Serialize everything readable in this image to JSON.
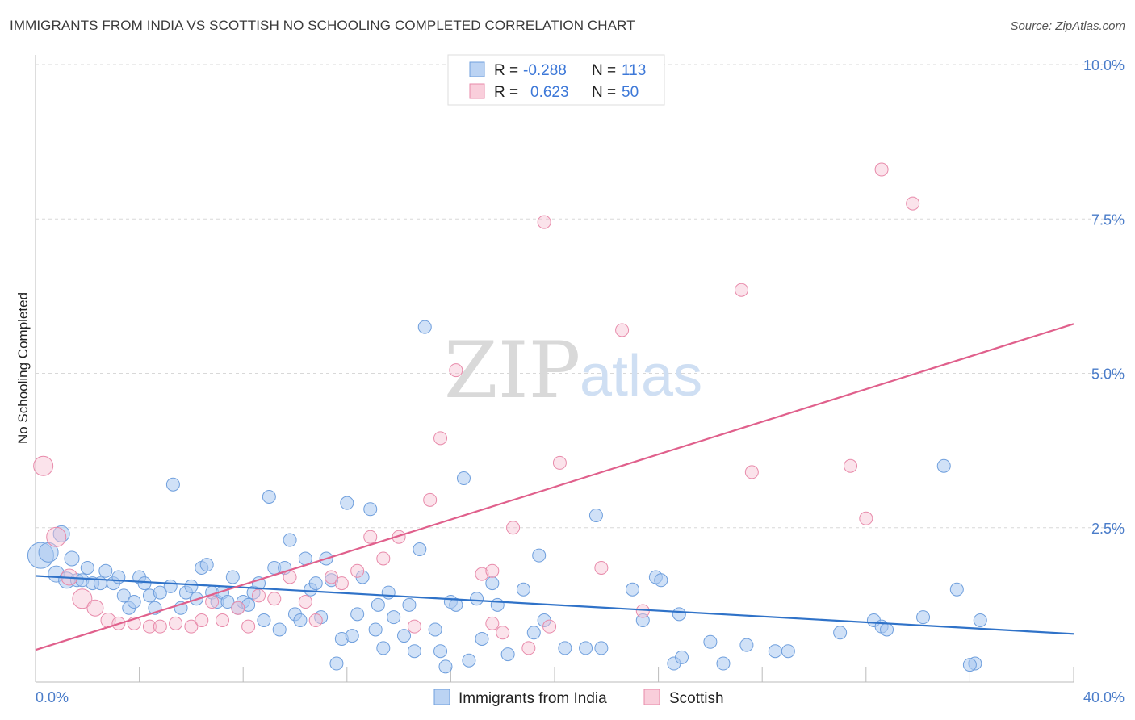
{
  "header": {
    "title": "IMMIGRANTS FROM INDIA VS SCOTTISH NO SCHOOLING COMPLETED CORRELATION CHART",
    "source": "Source: ZipAtlas.com"
  },
  "watermark": {
    "zip": "ZIP",
    "atlas": "atlas"
  },
  "legend_box": {
    "rows": [
      {
        "r_label": "R =",
        "r_value": "-0.288",
        "n_label": "N =",
        "n_value": "113"
      },
      {
        "r_label": "R =",
        "r_value": "0.623",
        "n_label": "N =",
        "n_value": "50"
      }
    ]
  },
  "bottom_legend": {
    "india": "Immigrants from India",
    "scottish": "Scottish"
  },
  "colors": {
    "india_fill": "#aac8f0",
    "india_stroke": "#6f9fdd",
    "india_line": "#2f72c8",
    "scottish_fill": "#f7c2d2",
    "scottish_stroke": "#e88aaa",
    "scottish_line": "#e0608c",
    "tick_text": "#4a7cc9"
  },
  "chart_data": {
    "type": "scatter",
    "title": "IMMIGRANTS FROM INDIA VS SCOTTISH NO SCHOOLING COMPLETED CORRELATION CHART",
    "xlabel": "",
    "ylabel": "No Schooling Completed",
    "xlim": [
      0,
      40
    ],
    "ylim": [
      0,
      10
    ],
    "x_tick_labels": [
      "0.0%",
      "40.0%"
    ],
    "y_tick_labels": [
      "2.5%",
      "5.0%",
      "7.5%",
      "10.0%"
    ],
    "y_ticks": [
      2.5,
      5.0,
      7.5,
      10.0
    ],
    "grid": true,
    "series": [
      {
        "name": "Immigrants from India",
        "r": -0.288,
        "n": 113,
        "trend": {
          "x": [
            0,
            40
          ],
          "y": [
            1.72,
            0.78
          ]
        },
        "points": [
          [
            0.2,
            2.05,
            16
          ],
          [
            0.5,
            2.1,
            12
          ],
          [
            0.8,
            1.75,
            10
          ],
          [
            1.0,
            2.4,
            10
          ],
          [
            1.2,
            1.65,
            10
          ],
          [
            1.4,
            2.0,
            9
          ],
          [
            1.6,
            1.65,
            8
          ],
          [
            1.8,
            1.65,
            8
          ],
          [
            2.0,
            1.85,
            8
          ],
          [
            2.2,
            1.6,
            8
          ],
          [
            2.5,
            1.6,
            8
          ],
          [
            2.7,
            1.8,
            8
          ],
          [
            3.0,
            1.6,
            8
          ],
          [
            3.2,
            1.7,
            8
          ],
          [
            3.4,
            1.4,
            8
          ],
          [
            3.6,
            1.2,
            8
          ],
          [
            3.8,
            1.3,
            8
          ],
          [
            4.0,
            1.7,
            8
          ],
          [
            4.2,
            1.6,
            8
          ],
          [
            4.4,
            1.4,
            8
          ],
          [
            4.6,
            1.2,
            8
          ],
          [
            4.8,
            1.45,
            8
          ],
          [
            5.2,
            1.55,
            8
          ],
          [
            5.3,
            3.2,
            8
          ],
          [
            5.6,
            1.2,
            8
          ],
          [
            5.8,
            1.45,
            8
          ],
          [
            6.0,
            1.55,
            8
          ],
          [
            6.2,
            1.35,
            8
          ],
          [
            6.4,
            1.85,
            8
          ],
          [
            6.6,
            1.9,
            8
          ],
          [
            6.8,
            1.45,
            8
          ],
          [
            7.0,
            1.3,
            8
          ],
          [
            7.2,
            1.45,
            8
          ],
          [
            7.4,
            1.3,
            8
          ],
          [
            7.6,
            1.7,
            8
          ],
          [
            7.8,
            1.2,
            8
          ],
          [
            8.0,
            1.3,
            8
          ],
          [
            8.2,
            1.25,
            8
          ],
          [
            8.4,
            1.45,
            8
          ],
          [
            8.6,
            1.6,
            8
          ],
          [
            8.8,
            1.0,
            8
          ],
          [
            9.0,
            3.0,
            8
          ],
          [
            9.2,
            1.85,
            8
          ],
          [
            9.4,
            0.85,
            8
          ],
          [
            9.6,
            1.85,
            8
          ],
          [
            9.8,
            2.3,
            8
          ],
          [
            10.0,
            1.1,
            8
          ],
          [
            10.2,
            1.0,
            8
          ],
          [
            10.4,
            2.0,
            8
          ],
          [
            10.6,
            1.5,
            8
          ],
          [
            10.8,
            1.6,
            8
          ],
          [
            11.0,
            1.05,
            8
          ],
          [
            11.2,
            2.0,
            8
          ],
          [
            11.4,
            1.65,
            8
          ],
          [
            11.6,
            0.3,
            8
          ],
          [
            11.8,
            0.7,
            8
          ],
          [
            12.0,
            2.9,
            8
          ],
          [
            12.2,
            0.75,
            8
          ],
          [
            12.4,
            1.1,
            8
          ],
          [
            12.6,
            1.7,
            8
          ],
          [
            12.9,
            2.8,
            8
          ],
          [
            13.1,
            0.85,
            8
          ],
          [
            13.2,
            1.25,
            8
          ],
          [
            13.4,
            0.55,
            8
          ],
          [
            13.6,
            1.45,
            8
          ],
          [
            13.8,
            1.05,
            8
          ],
          [
            14.2,
            0.75,
            8
          ],
          [
            14.4,
            1.25,
            8
          ],
          [
            14.6,
            0.5,
            8
          ],
          [
            14.8,
            2.15,
            8
          ],
          [
            15.0,
            5.75,
            8
          ],
          [
            15.4,
            0.85,
            8
          ],
          [
            15.6,
            0.5,
            8
          ],
          [
            15.8,
            0.25,
            8
          ],
          [
            16.0,
            1.3,
            8
          ],
          [
            16.2,
            1.25,
            8
          ],
          [
            16.5,
            3.3,
            8
          ],
          [
            16.7,
            0.35,
            8
          ],
          [
            17.0,
            1.35,
            8
          ],
          [
            17.2,
            0.7,
            8
          ],
          [
            17.6,
            1.6,
            8
          ],
          [
            17.8,
            1.25,
            8
          ],
          [
            18.2,
            0.45,
            8
          ],
          [
            18.8,
            1.5,
            8
          ],
          [
            19.2,
            0.8,
            8
          ],
          [
            19.4,
            2.05,
            8
          ],
          [
            19.6,
            1.0,
            8
          ],
          [
            20.4,
            0.55,
            8
          ],
          [
            21.2,
            0.55,
            8
          ],
          [
            21.6,
            2.7,
            8
          ],
          [
            21.8,
            0.55,
            8
          ],
          [
            23.0,
            1.5,
            8
          ],
          [
            23.4,
            1.0,
            8
          ],
          [
            23.9,
            1.7,
            8
          ],
          [
            24.1,
            1.65,
            8
          ],
          [
            24.6,
            0.3,
            8
          ],
          [
            24.8,
            1.1,
            8
          ],
          [
            24.9,
            0.4,
            8
          ],
          [
            26.0,
            0.65,
            8
          ],
          [
            26.5,
            0.3,
            8
          ],
          [
            27.4,
            0.6,
            8
          ],
          [
            28.5,
            0.5,
            8
          ],
          [
            29.0,
            0.5,
            8
          ],
          [
            31.0,
            0.8,
            8
          ],
          [
            32.3,
            1.0,
            8
          ],
          [
            32.6,
            0.9,
            8
          ],
          [
            32.8,
            0.85,
            8
          ],
          [
            34.2,
            1.05,
            8
          ],
          [
            35.0,
            3.5,
            8
          ],
          [
            35.5,
            1.5,
            8
          ],
          [
            36.2,
            0.3,
            8
          ],
          [
            36.4,
            1.0,
            8
          ],
          [
            36.0,
            0.28,
            8
          ]
        ]
      },
      {
        "name": "Scottish",
        "r": 0.623,
        "n": 50,
        "trend": {
          "x": [
            0,
            40
          ],
          "y": [
            0.52,
            5.8
          ]
        },
        "points": [
          [
            0.3,
            3.5,
            12
          ],
          [
            0.8,
            2.35,
            12
          ],
          [
            1.3,
            1.7,
            10
          ],
          [
            1.8,
            1.35,
            12
          ],
          [
            2.3,
            1.2,
            10
          ],
          [
            2.8,
            1.0,
            9
          ],
          [
            3.2,
            0.95,
            8
          ],
          [
            3.8,
            0.95,
            8
          ],
          [
            4.4,
            0.9,
            8
          ],
          [
            4.8,
            0.9,
            8
          ],
          [
            5.4,
            0.95,
            8
          ],
          [
            6.0,
            0.9,
            8
          ],
          [
            6.4,
            1.0,
            8
          ],
          [
            6.8,
            1.3,
            8
          ],
          [
            7.2,
            1.0,
            8
          ],
          [
            7.8,
            1.2,
            8
          ],
          [
            8.2,
            0.9,
            8
          ],
          [
            8.6,
            1.4,
            8
          ],
          [
            9.2,
            1.35,
            8
          ],
          [
            9.8,
            1.7,
            8
          ],
          [
            10.4,
            1.3,
            8
          ],
          [
            10.8,
            1.0,
            8
          ],
          [
            11.4,
            1.7,
            8
          ],
          [
            11.8,
            1.6,
            8
          ],
          [
            12.4,
            1.8,
            8
          ],
          [
            12.9,
            2.35,
            8
          ],
          [
            13.4,
            2.0,
            8
          ],
          [
            14.0,
            2.35,
            8
          ],
          [
            14.6,
            0.9,
            8
          ],
          [
            15.2,
            2.95,
            8
          ],
          [
            15.6,
            3.95,
            8
          ],
          [
            16.2,
            5.05,
            8
          ],
          [
            17.2,
            1.75,
            8
          ],
          [
            17.6,
            1.8,
            8
          ],
          [
            18.0,
            0.8,
            8
          ],
          [
            18.4,
            2.5,
            8
          ],
          [
            19.0,
            0.55,
            8
          ],
          [
            19.6,
            7.45,
            8
          ],
          [
            19.8,
            0.9,
            8
          ],
          [
            20.2,
            3.55,
            8
          ],
          [
            21.8,
            1.85,
            8
          ],
          [
            22.6,
            5.7,
            8
          ],
          [
            23.4,
            1.15,
            8
          ],
          [
            27.2,
            6.35,
            8
          ],
          [
            27.6,
            3.4,
            8
          ],
          [
            31.4,
            3.5,
            8
          ],
          [
            32.0,
            2.65,
            8
          ],
          [
            32.6,
            8.3,
            8
          ],
          [
            33.8,
            7.75,
            8
          ],
          [
            17.6,
            0.95,
            8
          ]
        ]
      }
    ]
  }
}
